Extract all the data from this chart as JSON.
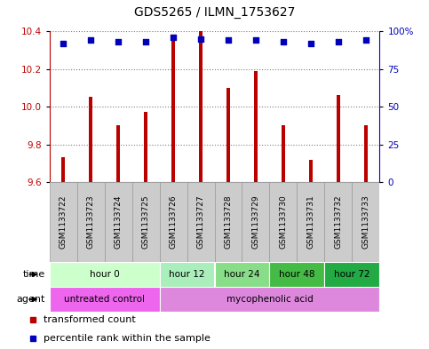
{
  "title": "GDS5265 / ILMN_1753627",
  "samples": [
    "GSM1133722",
    "GSM1133723",
    "GSM1133724",
    "GSM1133725",
    "GSM1133726",
    "GSM1133727",
    "GSM1133728",
    "GSM1133729",
    "GSM1133730",
    "GSM1133731",
    "GSM1133732",
    "GSM1133733"
  ],
  "transformed_counts": [
    9.73,
    10.05,
    9.9,
    9.97,
    10.37,
    10.4,
    10.1,
    10.19,
    9.9,
    9.72,
    10.06,
    9.9
  ],
  "percentile_ranks": [
    92,
    94,
    93,
    93,
    96,
    95,
    94,
    94,
    93,
    92,
    93,
    94
  ],
  "ylim_left": [
    9.6,
    10.4
  ],
  "ylim_right": [
    0,
    100
  ],
  "yticks_left": [
    9.6,
    9.8,
    10.0,
    10.2,
    10.4
  ],
  "yticks_right": [
    0,
    25,
    50,
    75,
    100
  ],
  "bar_color": "#bb0000",
  "dot_color": "#0000bb",
  "bar_bottom": 9.6,
  "bar_width": 0.15,
  "time_groups": [
    {
      "label": "hour 0",
      "start": 0,
      "end": 4,
      "color": "#ccffcc"
    },
    {
      "label": "hour 12",
      "start": 4,
      "end": 6,
      "color": "#aaeebb"
    },
    {
      "label": "hour 24",
      "start": 6,
      "end": 8,
      "color": "#88dd88"
    },
    {
      "label": "hour 48",
      "start": 8,
      "end": 10,
      "color": "#44bb44"
    },
    {
      "label": "hour 72",
      "start": 10,
      "end": 12,
      "color": "#22aa44"
    }
  ],
  "agent_groups": [
    {
      "label": "untreated control",
      "start": 0,
      "end": 4,
      "color": "#ee66ee"
    },
    {
      "label": "mycophenolic acid",
      "start": 4,
      "end": 12,
      "color": "#dd88dd"
    }
  ],
  "legend_items": [
    {
      "label": "transformed count",
      "color": "#bb0000"
    },
    {
      "label": "percentile rank within the sample",
      "color": "#0000bb"
    }
  ],
  "sample_box_color": "#cccccc",
  "sample_box_edge": "#999999"
}
